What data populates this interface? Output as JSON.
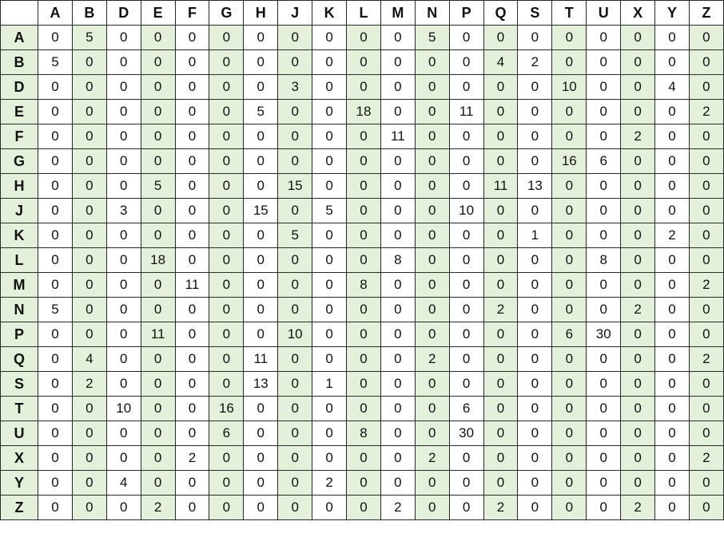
{
  "sheet": {
    "column_headers": [
      "A",
      "B",
      "D",
      "E",
      "F",
      "G",
      "H",
      "J",
      "K",
      "L",
      "M",
      "N",
      "P",
      "Q",
      "S",
      "T",
      "U",
      "X",
      "Y",
      "Z"
    ],
    "row_headers": [
      "A",
      "B",
      "D",
      "E",
      "F",
      "G",
      "H",
      "J",
      "K",
      "L",
      "M",
      "N",
      "P",
      "Q",
      "S",
      "T",
      "U",
      "X",
      "Y",
      "Z"
    ],
    "rows": [
      [
        0,
        5,
        0,
        0,
        0,
        0,
        0,
        0,
        0,
        0,
        0,
        5,
        0,
        0,
        0,
        0,
        0,
        0,
        0,
        0
      ],
      [
        5,
        0,
        0,
        0,
        0,
        0,
        0,
        0,
        0,
        0,
        0,
        0,
        0,
        4,
        2,
        0,
        0,
        0,
        0,
        0
      ],
      [
        0,
        0,
        0,
        0,
        0,
        0,
        0,
        3,
        0,
        0,
        0,
        0,
        0,
        0,
        0,
        10,
        0,
        0,
        4,
        0
      ],
      [
        0,
        0,
        0,
        0,
        0,
        0,
        5,
        0,
        0,
        18,
        0,
        0,
        11,
        0,
        0,
        0,
        0,
        0,
        0,
        2
      ],
      [
        0,
        0,
        0,
        0,
        0,
        0,
        0,
        0,
        0,
        0,
        11,
        0,
        0,
        0,
        0,
        0,
        0,
        2,
        0,
        0
      ],
      [
        0,
        0,
        0,
        0,
        0,
        0,
        0,
        0,
        0,
        0,
        0,
        0,
        0,
        0,
        0,
        16,
        6,
        0,
        0,
        0
      ],
      [
        0,
        0,
        0,
        5,
        0,
        0,
        0,
        15,
        0,
        0,
        0,
        0,
        0,
        11,
        13,
        0,
        0,
        0,
        0,
        0
      ],
      [
        0,
        0,
        3,
        0,
        0,
        0,
        15,
        0,
        5,
        0,
        0,
        0,
        10,
        0,
        0,
        0,
        0,
        0,
        0,
        0
      ],
      [
        0,
        0,
        0,
        0,
        0,
        0,
        0,
        5,
        0,
        0,
        0,
        0,
        0,
        0,
        1,
        0,
        0,
        0,
        2,
        0
      ],
      [
        0,
        0,
        0,
        18,
        0,
        0,
        0,
        0,
        0,
        0,
        8,
        0,
        0,
        0,
        0,
        0,
        8,
        0,
        0,
        0
      ],
      [
        0,
        0,
        0,
        0,
        11,
        0,
        0,
        0,
        0,
        8,
        0,
        0,
        0,
        0,
        0,
        0,
        0,
        0,
        0,
        2
      ],
      [
        5,
        0,
        0,
        0,
        0,
        0,
        0,
        0,
        0,
        0,
        0,
        0,
        0,
        2,
        0,
        0,
        0,
        2,
        0,
        0
      ],
      [
        0,
        0,
        0,
        11,
        0,
        0,
        0,
        10,
        0,
        0,
        0,
        0,
        0,
        0,
        0,
        6,
        30,
        0,
        0,
        0
      ],
      [
        0,
        4,
        0,
        0,
        0,
        0,
        11,
        0,
        0,
        0,
        0,
        2,
        0,
        0,
        0,
        0,
        0,
        0,
        0,
        2
      ],
      [
        0,
        2,
        0,
        0,
        0,
        0,
        13,
        0,
        1,
        0,
        0,
        0,
        0,
        0,
        0,
        0,
        0,
        0,
        0,
        0
      ],
      [
        0,
        0,
        10,
        0,
        0,
        16,
        0,
        0,
        0,
        0,
        0,
        0,
        6,
        0,
        0,
        0,
        0,
        0,
        0,
        0
      ],
      [
        0,
        0,
        0,
        0,
        0,
        6,
        0,
        0,
        0,
        8,
        0,
        0,
        30,
        0,
        0,
        0,
        0,
        0,
        0,
        0
      ],
      [
        0,
        0,
        0,
        0,
        2,
        0,
        0,
        0,
        0,
        0,
        0,
        2,
        0,
        0,
        0,
        0,
        0,
        0,
        0,
        2
      ],
      [
        0,
        0,
        4,
        0,
        0,
        0,
        0,
        0,
        2,
        0,
        0,
        0,
        0,
        0,
        0,
        0,
        0,
        0,
        0,
        0
      ],
      [
        0,
        0,
        0,
        2,
        0,
        0,
        0,
        0,
        0,
        0,
        2,
        0,
        0,
        2,
        0,
        0,
        0,
        2,
        0,
        0
      ]
    ],
    "colors": {
      "header_fill": "#e3f0da",
      "cell_fill_alt": "#e3f0da",
      "cell_fill_plain": "#ffffff",
      "grid_line": "#2a2a2a"
    }
  }
}
